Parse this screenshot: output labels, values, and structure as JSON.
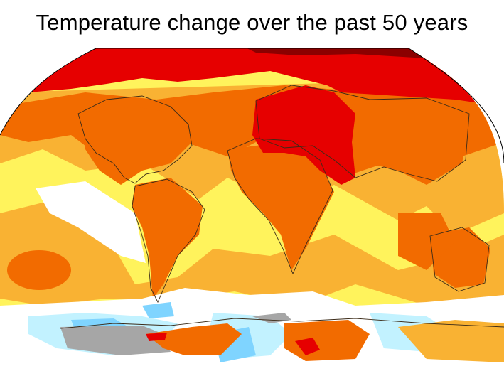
{
  "title": "Temperature change over the past 50 years",
  "colors": {
    "hottest": "#8b0000",
    "very_hot": "#e60000",
    "hot": "#f26b00",
    "warm": "#f9b233",
    "mild": "#fff35c",
    "neutral": "#ffffff",
    "cool": "#c2f2ff",
    "cold": "#7fd4ff",
    "no_data": "#a6a6a6",
    "coastline": "#3b2b18"
  }
}
